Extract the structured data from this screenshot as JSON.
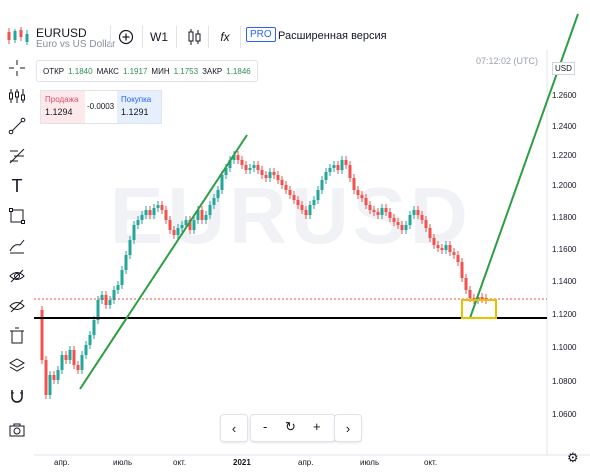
{
  "header": {
    "symbol": "EURUSD",
    "description": "Euro vs US Dollar",
    "interval": "W1",
    "indicators_glyph": "fx",
    "pro_label": "PRO",
    "pro_text": "Расширенная версия"
  },
  "ohlc": {
    "open_label": "ОТКР",
    "open_value": "1.1840",
    "high_label": "МАКС",
    "high_value": "1.1917",
    "low_label": "МИН",
    "low_value": "1.1753",
    "close_label": "ЗАКР",
    "close_value": "1.1846"
  },
  "trade": {
    "sell_label": "Продажа",
    "sell_value": "1.1294",
    "spread": "-0.0003",
    "buy_label": "Покупка",
    "buy_value": "1.1291"
  },
  "clock": "07:12:02 (UTC)",
  "currency": "USD",
  "watermark": "EURUSD",
  "y_ticks": [
    "1.2600",
    "1.2400",
    "1.2200",
    "1.2000",
    "1.1800",
    "1.1600",
    "1.1400",
    "1.1200",
    "1.1000",
    "1.0800",
    "1.0600"
  ],
  "x_ticks": [
    "апр.",
    "июль",
    "окт.",
    "2021",
    "апр.",
    "июль",
    "окт."
  ],
  "nav": {
    "left": "‹",
    "minus": "-",
    "reset": "↻",
    "plus": "+",
    "right": "›"
  },
  "left_tools": [
    "crosshair-icon",
    "indicators-icon",
    "trendline-icon",
    "fib-icon",
    "text-icon",
    "rectangle-icon",
    "brush-icon",
    "hide-drawings-icon",
    "lock-icon",
    "delete-all-icon",
    "layers-icon",
    "magnet-icon",
    "screenshot-icon"
  ],
  "colors": {
    "up": "#26a69a",
    "down": "#ef5350",
    "trend": "#2e9e44",
    "support": "#000000",
    "box": "#e8c200",
    "price_line": "#ef5350"
  }
}
